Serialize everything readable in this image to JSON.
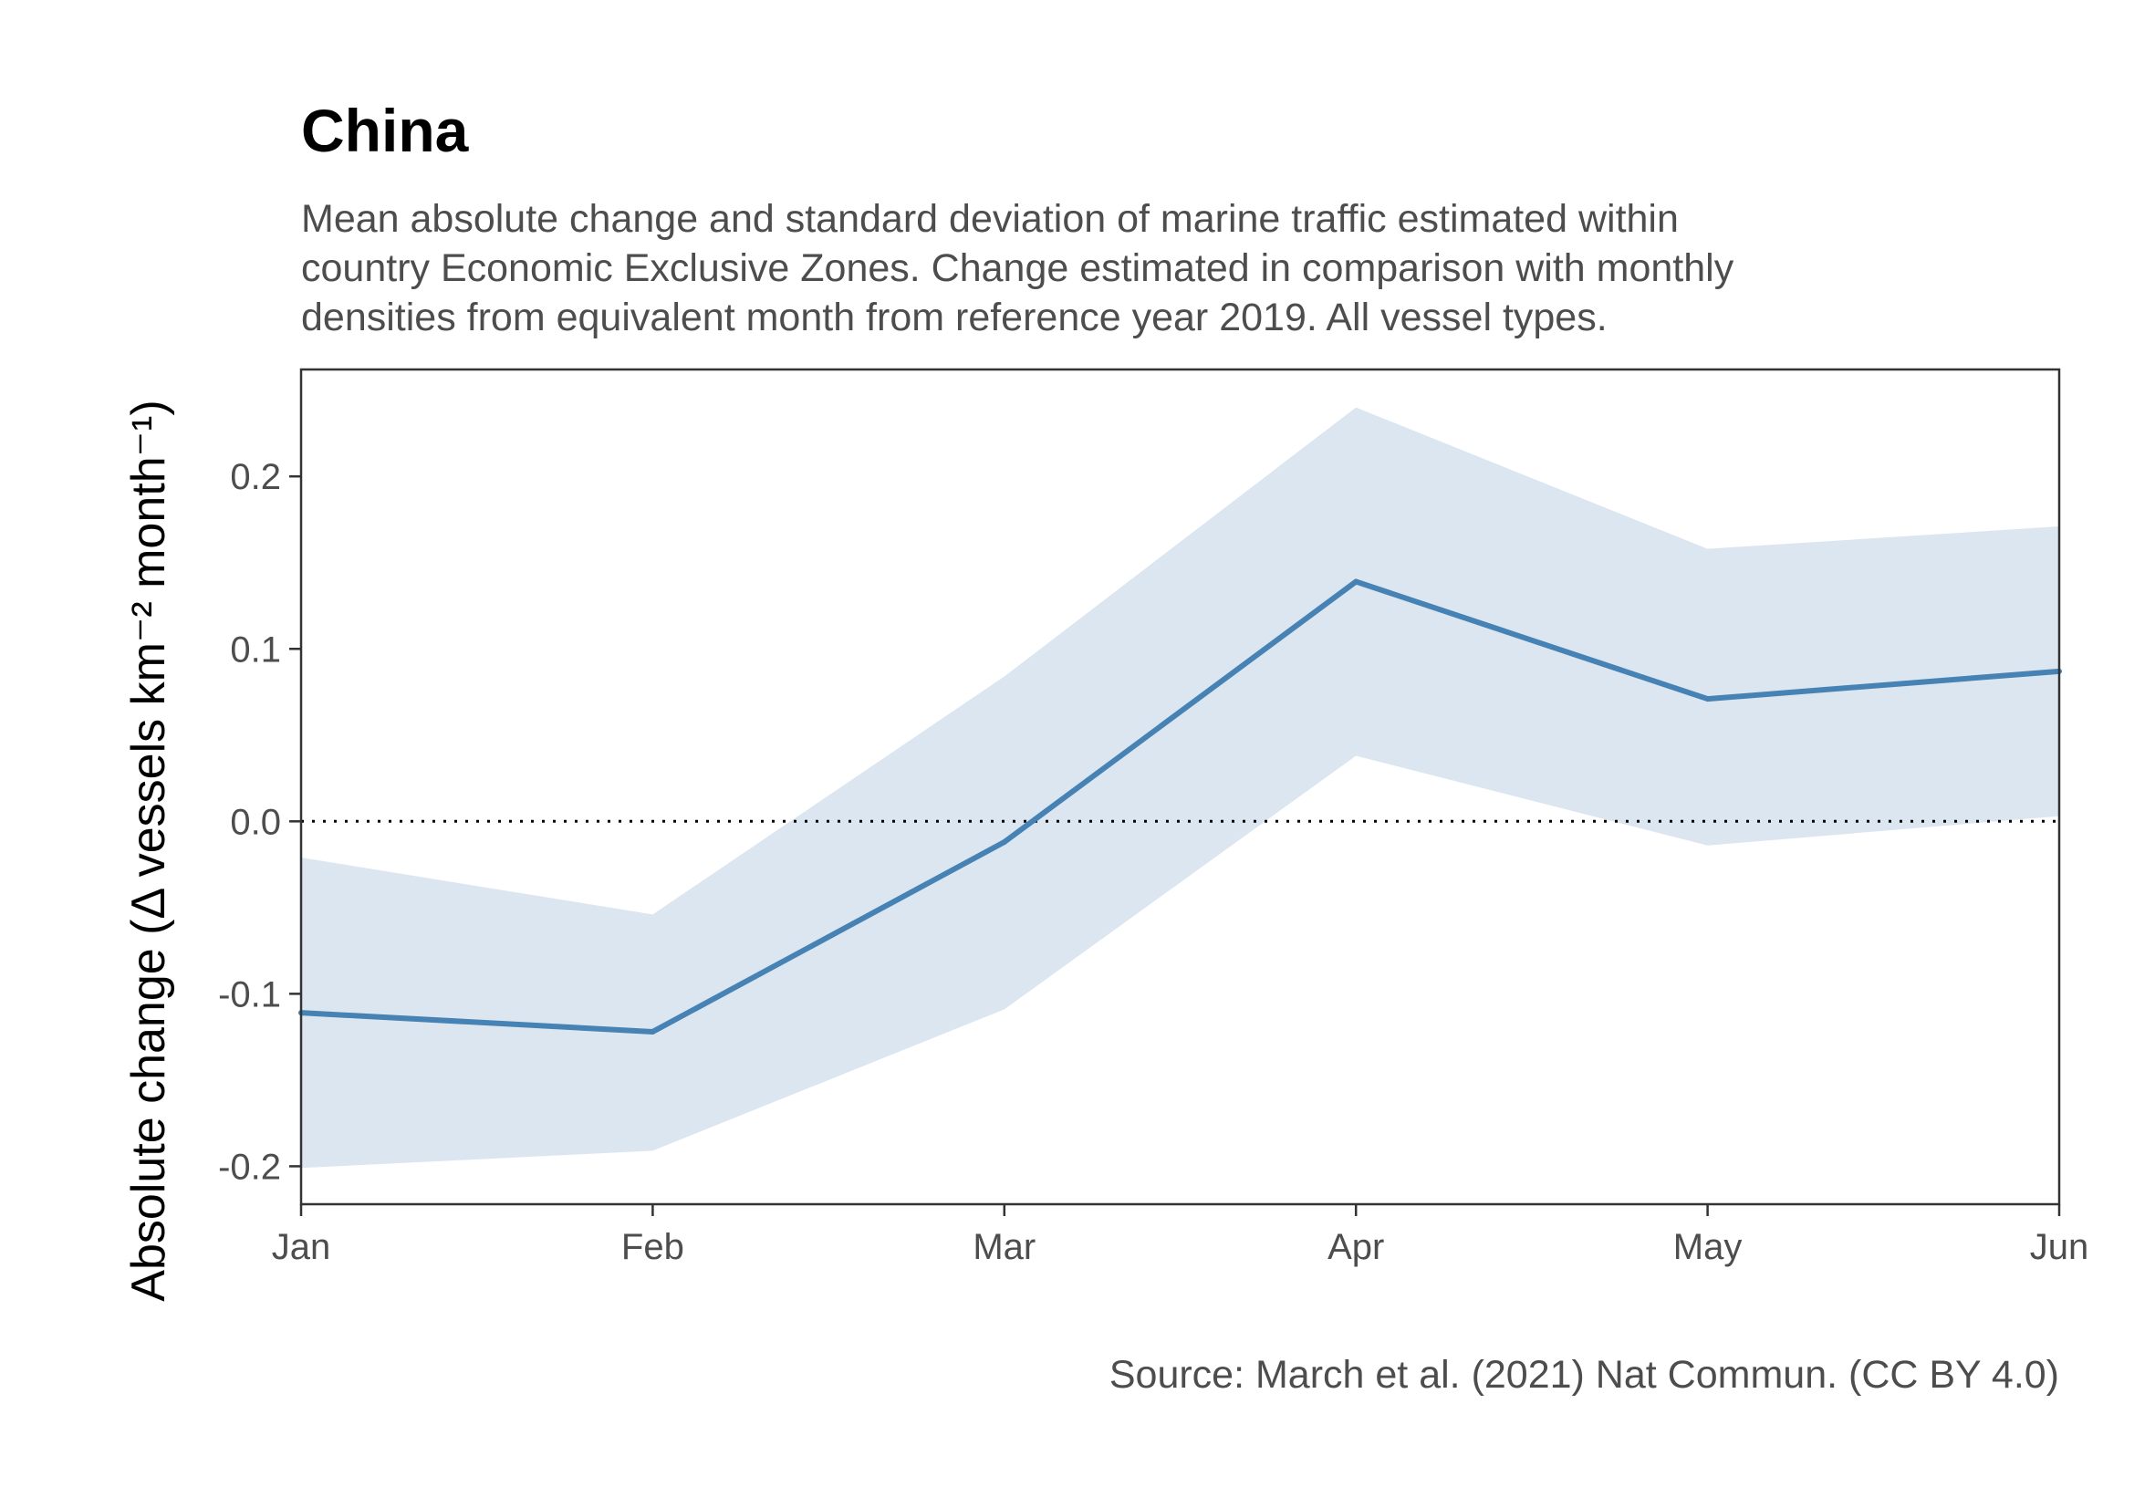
{
  "title": "China",
  "subtitle": [
    "Mean absolute change and standard deviation of marine traffic estimated within",
    "country Economic Exclusive Zones. Change estimated in comparison with monthly",
    "densities from equivalent month from reference year 2019. All vessel types."
  ],
  "caption": "Source: March et al. (2021) Nat Commun. (CC BY 4.0)",
  "colors": {
    "line": "#4682b4",
    "ribbon": "#dce6f0",
    "axis": "#333333",
    "text": "#4d4d4d"
  },
  "chart_data": {
    "type": "line",
    "ylabel": "Absolute change (Δ vessels km⁻² month⁻¹)",
    "categories": [
      "Jan",
      "Feb",
      "Mar",
      "Apr",
      "May",
      "Jun"
    ],
    "series": [
      {
        "values": [
          -0.111,
          -0.122,
          -0.012,
          0.139,
          0.071,
          0.087
        ]
      }
    ],
    "band": {
      "lower": [
        -0.201,
        -0.191,
        -0.109,
        0.038,
        -0.014,
        0.003
      ],
      "upper": [
        -0.021,
        -0.054,
        0.084,
        0.24,
        0.158,
        0.171
      ]
    },
    "ylim": [
      -0.222,
      0.262
    ],
    "yticks": [
      -0.2,
      -0.1,
      0.0,
      0.1,
      0.2
    ],
    "ytick_labels": [
      "-0.2",
      "-0.1",
      "0.0",
      "0.1",
      "0.2"
    ],
    "reference_line": 0.0,
    "grid": false
  }
}
